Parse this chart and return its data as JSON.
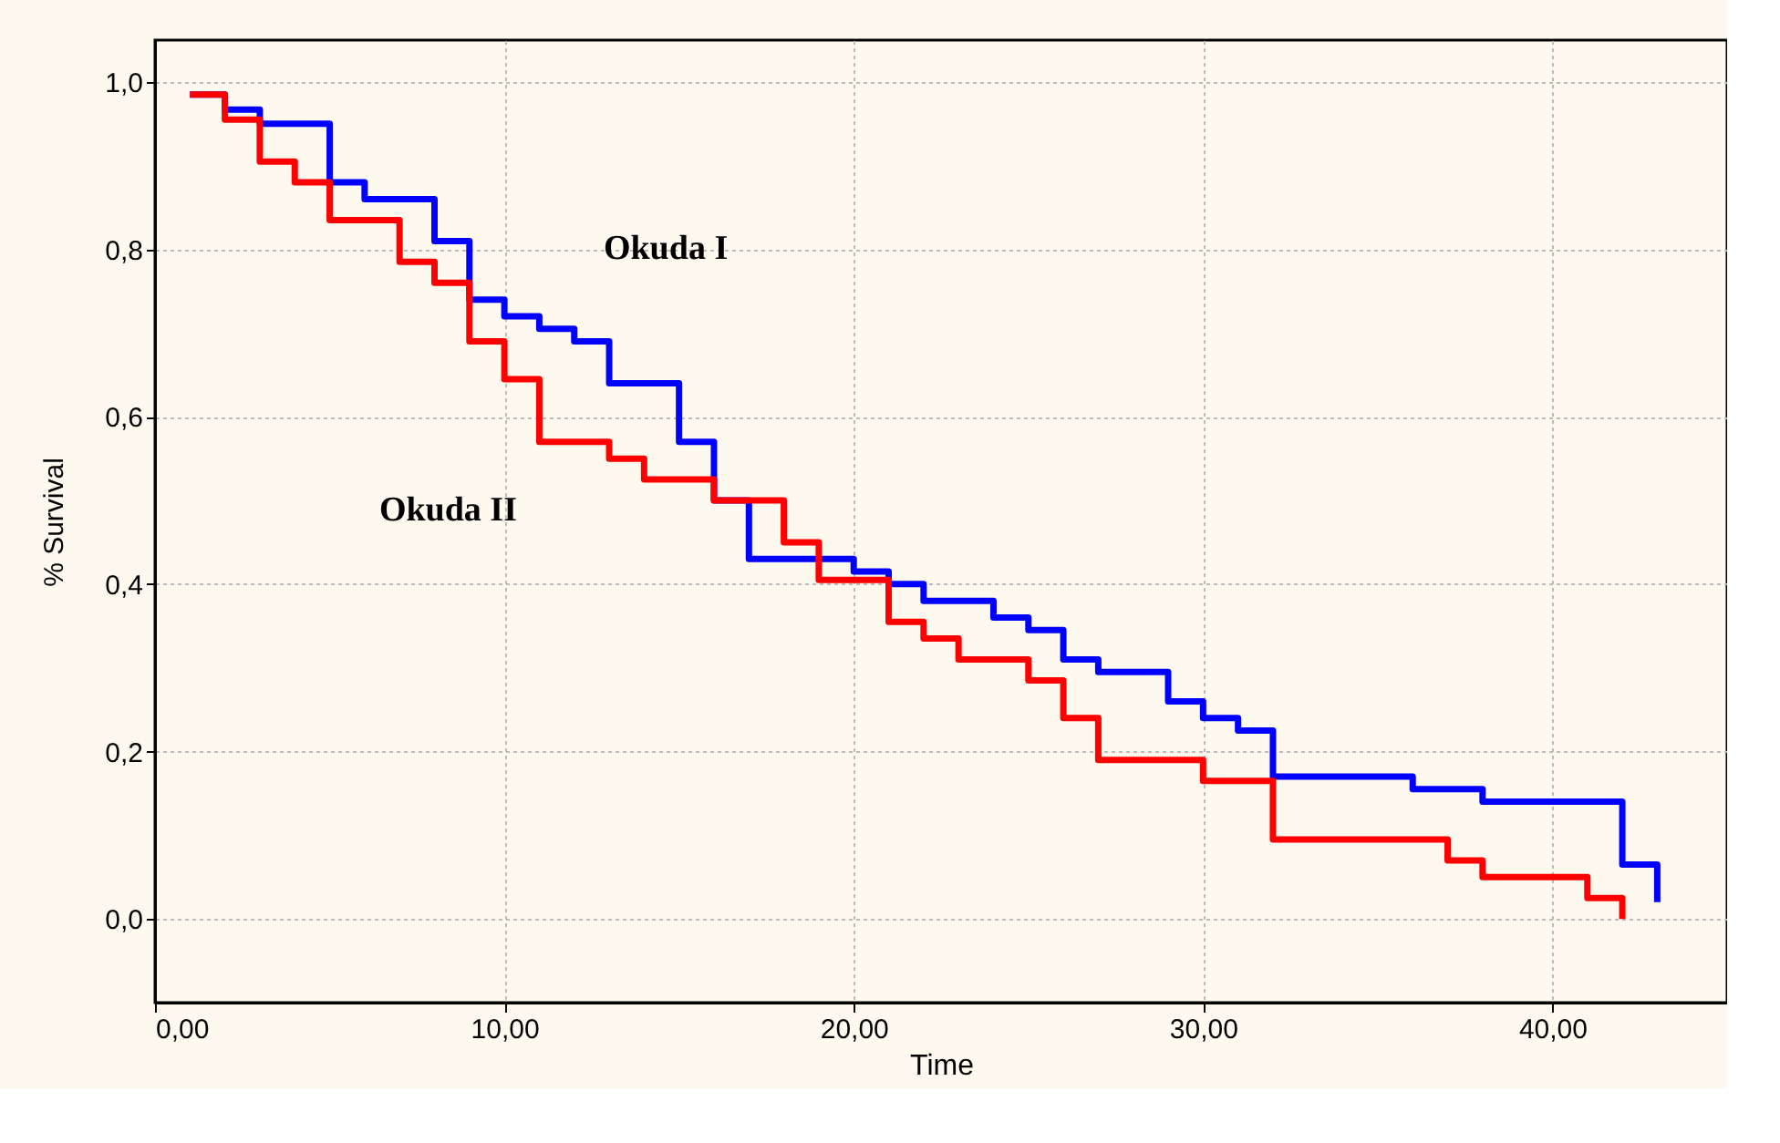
{
  "chart_data": {
    "type": "step",
    "xlabel": "Time",
    "ylabel": "% Survival",
    "xlim": [
      0,
      45
    ],
    "xticks": [
      {
        "value": 0,
        "label": "0,00"
      },
      {
        "value": 10,
        "label": "10,00"
      },
      {
        "value": 20,
        "label": "20,00"
      },
      {
        "value": 30,
        "label": "30,00"
      },
      {
        "value": 40,
        "label": "40,00"
      }
    ],
    "ylim": [
      -0.1,
      1.05
    ],
    "yticks": [
      {
        "value": 0,
        "label": "0,0"
      },
      {
        "value": 0.2,
        "label": "0,2"
      },
      {
        "value": 0.4,
        "label": "0,4"
      },
      {
        "value": 0.6,
        "label": "0,6"
      },
      {
        "value": 0.8,
        "label": "0,8"
      },
      {
        "value": 1.0,
        "label": "1,0"
      }
    ],
    "grid": true,
    "marker": "none",
    "line_style": "solid",
    "series": [
      {
        "name": "Okuda I",
        "color": "#0000ff",
        "x": [
          1,
          2,
          3,
          5,
          6,
          8,
          9,
          10,
          11,
          12,
          13,
          15,
          16,
          17,
          20,
          21,
          22,
          24,
          25,
          26,
          27,
          29,
          30,
          31,
          32,
          36,
          38,
          42,
          43
        ],
        "values": [
          0.985,
          0.967,
          0.95,
          0.88,
          0.86,
          0.81,
          0.74,
          0.72,
          0.705,
          0.69,
          0.64,
          0.57,
          0.5,
          0.43,
          0.415,
          0.4,
          0.38,
          0.36,
          0.345,
          0.31,
          0.295,
          0.26,
          0.24,
          0.225,
          0.17,
          0.155,
          0.14,
          0.065,
          0.02
        ]
      },
      {
        "name": "Okuda II",
        "color": "#ff0000",
        "x": [
          1,
          2,
          3,
          4,
          5,
          7,
          8,
          9,
          10,
          11,
          13,
          14,
          16,
          18,
          19,
          21,
          22,
          23,
          25,
          26,
          27,
          30,
          32,
          37,
          38,
          41,
          42
        ],
        "values": [
          0.985,
          0.955,
          0.905,
          0.88,
          0.835,
          0.785,
          0.76,
          0.69,
          0.645,
          0.57,
          0.55,
          0.525,
          0.5,
          0.45,
          0.405,
          0.355,
          0.335,
          0.31,
          0.285,
          0.24,
          0.19,
          0.165,
          0.095,
          0.07,
          0.05,
          0.025,
          0.0
        ]
      }
    ]
  }
}
